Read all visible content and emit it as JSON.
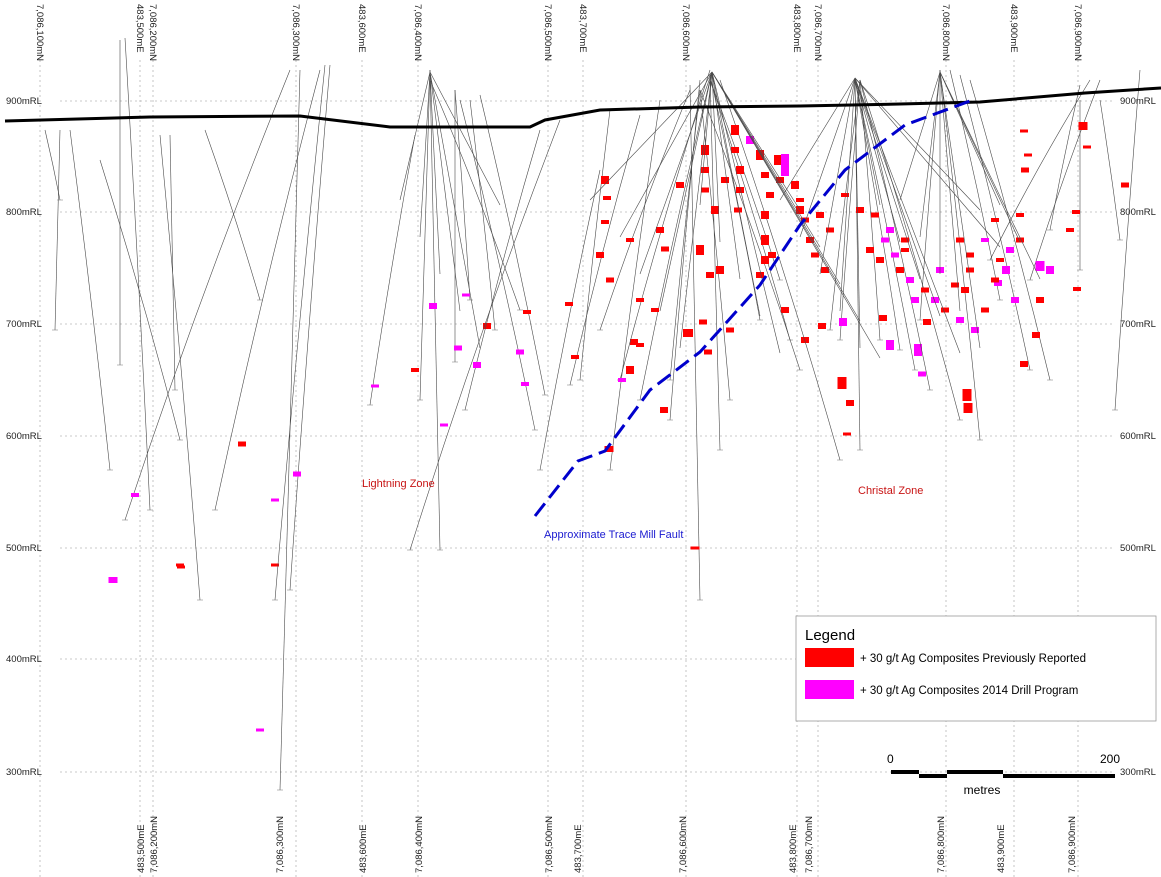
{
  "top_coords": [
    {
      "label": "7,086,100mN"
    },
    {
      "label": "483,500mE"
    },
    {
      "label": "7,086,200mN"
    },
    {
      "label": "7,086,300mN"
    },
    {
      "label": "483,600mE"
    },
    {
      "label": "7,086,400mN"
    },
    {
      "label": "7,086,500mN"
    },
    {
      "label": "483,700mE"
    },
    {
      "label": "7,086,600mN"
    },
    {
      "label": "483,800mE"
    },
    {
      "label": "7,086,700mN"
    },
    {
      "label": "7,086,800mN"
    },
    {
      "label": "483,900mE"
    },
    {
      "label": "7,086,900mN"
    }
  ],
  "bottom_coords": [
    {
      "label": "483,500mE"
    },
    {
      "label": "7,086,200mN"
    },
    {
      "label": "7,086,300mN"
    },
    {
      "label": "483,600mE"
    },
    {
      "label": "7,086,400mN"
    },
    {
      "label": "7,086,500mN"
    },
    {
      "label": "483,700mE"
    },
    {
      "label": "7,086,600mN"
    },
    {
      "label": "483,800mE"
    },
    {
      "label": "7,086,700mN"
    },
    {
      "label": "7,086,800mN"
    },
    {
      "label": "483,900mE"
    },
    {
      "label": "7,086,900mN"
    }
  ],
  "elevations": [
    {
      "label": "900mRL",
      "value": 900
    },
    {
      "label": "800mRL",
      "value": 800
    },
    {
      "label": "700mRL",
      "value": 700
    },
    {
      "label": "600mRL",
      "value": 600
    },
    {
      "label": "500mRL",
      "value": 500
    },
    {
      "label": "400mRL",
      "value": 400
    },
    {
      "label": "300mRL",
      "value": 300
    }
  ],
  "zones": {
    "lightning": "Lightning Zone",
    "christal": "Christal Zone",
    "fault": "Approximate Trace Mill Fault"
  },
  "legend": {
    "title": "Legend",
    "items": [
      {
        "label": "+ 30 g/t Ag Composites Previously Reported",
        "color": "#ff0000"
      },
      {
        "label": "+ 30 g/t Ag Composites 2014 Drill Program",
        "color": "#ff00ff"
      }
    ]
  },
  "scale": {
    "min_label": "0",
    "max_label": "200",
    "unit_label": "metres"
  },
  "colors": {
    "previous": "#ff0000",
    "program_2014": "#ff00ff",
    "fault": "#0000cc",
    "topography": "#000000"
  }
}
